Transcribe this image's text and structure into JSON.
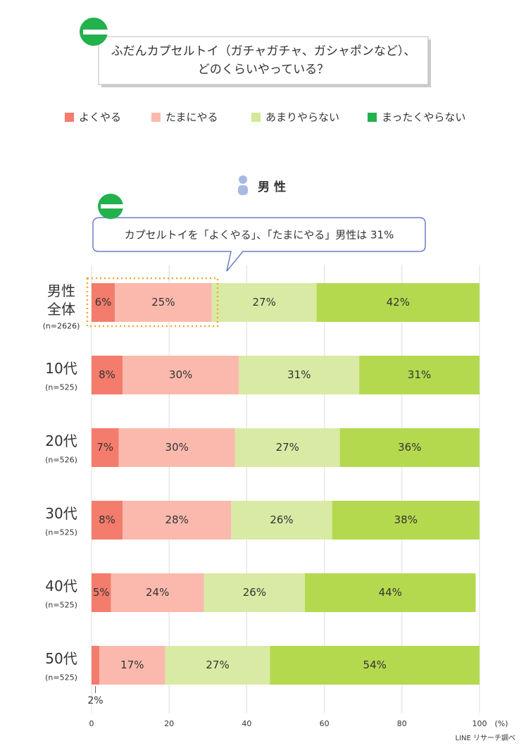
{
  "chart_data": {
    "type": "stacked-bar-horizontal",
    "title": [
      "ふだんカプセルトイ（ガチャガチャ、ガシャポンなど）、",
      "どのくらいやっている？"
    ],
    "panel_label": "男 性",
    "annotation": "カプセルトイを「よくやる」、「たまにやる」男性は 31%",
    "categories": [
      [
        "男性",
        "全体"
      ],
      [
        "10代"
      ],
      [
        "20代"
      ],
      [
        "30代"
      ],
      [
        "40代"
      ],
      [
        "50代"
      ]
    ],
    "sample_sizes": [
      "(n=2626)",
      "(n=525)",
      "(n=526)",
      "(n=525)",
      "(n=525)",
      "(n=525)"
    ],
    "series": [
      {
        "name": "よくやる",
        "color": "#f47c6c",
        "legend_color": "#f47c6c",
        "values": [
          6,
          8,
          7,
          8,
          5,
          2
        ],
        "value_labels": [
          "6%",
          "8%",
          "7%",
          "8%",
          "5%",
          "2%"
        ]
      },
      {
        "name": "たまにやる",
        "color": "#fbb9ad",
        "legend_color": "#fbb9ad",
        "values": [
          25,
          30,
          30,
          28,
          24,
          17
        ],
        "value_labels": [
          "25%",
          "30%",
          "30%",
          "28%",
          "24%",
          "17%"
        ]
      },
      {
        "name": "あまりやらない",
        "color": "#d9eaa4",
        "legend_color": "#d3e796",
        "values": [
          27,
          31,
          27,
          26,
          26,
          27
        ],
        "value_labels": [
          "27%",
          "31%",
          "27%",
          "26%",
          "26%",
          "27%"
        ]
      },
      {
        "name": "まったくやらない",
        "color": "#b4d94f",
        "legend_color": "#22b14c",
        "values": [
          42,
          31,
          36,
          38,
          44,
          54
        ],
        "value_labels": [
          "42%",
          "31%",
          "36%",
          "38%",
          "44%",
          "54%"
        ]
      }
    ],
    "xlim": [
      0,
      100
    ],
    "xticks": [
      0,
      20,
      40,
      60,
      80,
      100
    ],
    "x_unit": "(%)",
    "grid": true,
    "source": "LINE リサーチ調べ"
  }
}
